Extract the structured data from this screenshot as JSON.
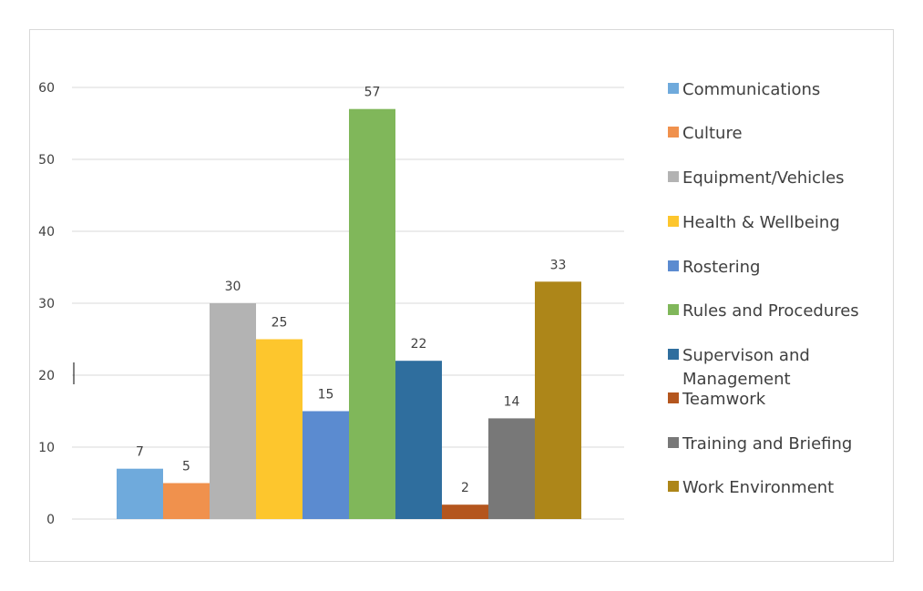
{
  "chart_data": {
    "type": "bar",
    "title": "",
    "xlabel": "",
    "ylabel": "",
    "ylim": [
      0,
      60
    ],
    "yticks": [
      0,
      10,
      20,
      30,
      40,
      50,
      60
    ],
    "grid": true,
    "legend_position": "right",
    "series": [
      {
        "name": "Communications",
        "value": 7,
        "color": "#6faadc"
      },
      {
        "name": "Culture",
        "value": 5,
        "color": "#f0914d"
      },
      {
        "name": "Equipment/Vehicles",
        "value": 30,
        "color": "#b3b3b3"
      },
      {
        "name": "Health & Wellbeing",
        "value": 25,
        "color": "#fdc62d"
      },
      {
        "name": "Rostering",
        "value": 15,
        "color": "#5b8bd0"
      },
      {
        "name": "Rules and Procedures",
        "value": 57,
        "color": "#80b75a"
      },
      {
        "name": "Supervison and Management",
        "legend_lines": [
          "Supervison and",
          "Management"
        ],
        "value": 22,
        "color": "#2f6e9e"
      },
      {
        "name": "Teamwork",
        "value": 2,
        "color": "#b4561e"
      },
      {
        "name": "Training and Briefing",
        "value": 14,
        "color": "#787878"
      },
      {
        "name": "Work Environment",
        "value": 33,
        "color": "#ad8619"
      }
    ]
  }
}
